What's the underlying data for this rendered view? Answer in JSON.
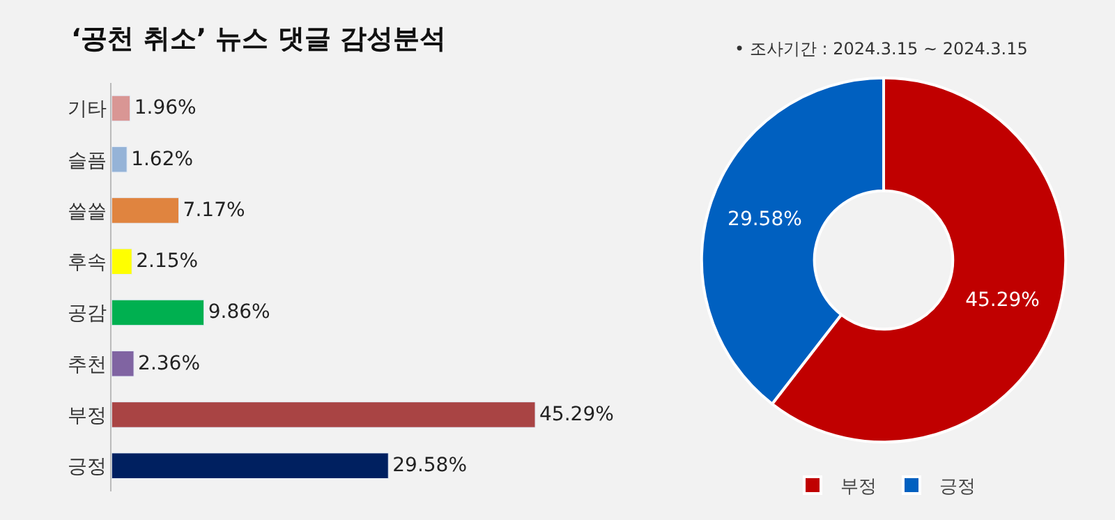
{
  "chart_data": [
    {
      "type": "bar",
      "orientation": "horizontal",
      "title": "‘공천 취소’ 뉴스 댓글 감성분석",
      "categories": [
        "기타",
        "슬픔",
        "쓸쓸",
        "후속",
        "공감",
        "추천",
        "부정",
        "긍정"
      ],
      "values": [
        1.96,
        1.62,
        7.17,
        2.15,
        9.86,
        2.36,
        45.29,
        29.58
      ],
      "value_labels": [
        "1.96%",
        "1.62%",
        "7.17%",
        "2.15%",
        "9.86%",
        "2.36%",
        "45.29%",
        "29.58%"
      ],
      "colors": [
        "#d99694",
        "#95b3d7",
        "#e0843f",
        "#ffff00",
        "#00b050",
        "#8064a2",
        "#a94444",
        "#002060"
      ],
      "tick_labels": "y",
      "grid": false
    },
    {
      "type": "donut",
      "annotations": [
        "• 조사기간 : 2024.3.15 ~ 2024.3.15"
      ],
      "categories": [
        "부정",
        "긍정"
      ],
      "values": [
        45.29,
        29.58
      ],
      "value_labels": [
        "45.29%",
        "29.58%"
      ],
      "colors": [
        "#c00000",
        "#0060c0"
      ],
      "legend": "bottom"
    }
  ]
}
